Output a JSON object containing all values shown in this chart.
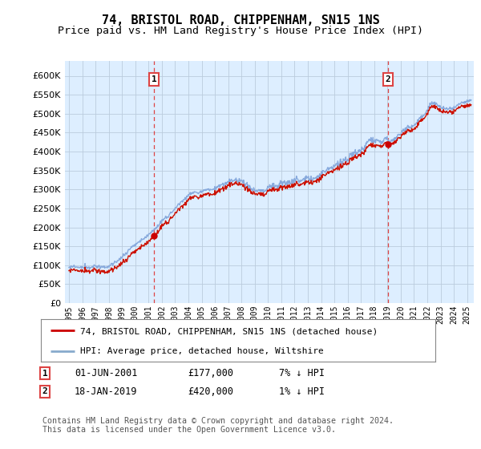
{
  "title": "74, BRISTOL ROAD, CHIPPENHAM, SN15 1NS",
  "subtitle": "Price paid vs. HM Land Registry's House Price Index (HPI)",
  "yticks": [
    0,
    50000,
    100000,
    150000,
    200000,
    250000,
    300000,
    350000,
    400000,
    450000,
    500000,
    550000,
    600000
  ],
  "xlim_start": 1994.7,
  "xlim_end": 2025.5,
  "ylim": [
    0,
    640000
  ],
  "marker1_x": 2001.42,
  "marker1_y": 177000,
  "marker2_x": 2019.05,
  "marker2_y": 420000,
  "vline1_x": 2001.42,
  "vline2_x": 2019.05,
  "legend_line1_color": "#cc0000",
  "legend_line2_color": "#88aacc",
  "legend_line1_label": "74, BRISTOL ROAD, CHIPPENHAM, SN15 1NS (detached house)",
  "legend_line2_label": "HPI: Average price, detached house, Wiltshire",
  "note1_date": "01-JUN-2001",
  "note1_price": "£177,000",
  "note1_hpi": "7% ↓ HPI",
  "note2_date": "18-JAN-2019",
  "note2_price": "£420,000",
  "note2_hpi": "1% ↓ HPI",
  "footer": "Contains HM Land Registry data © Crown copyright and database right 2024.\nThis data is licensed under the Open Government Licence v3.0.",
  "bg_color": "#ffffff",
  "plot_bg_color": "#ddeeff",
  "grid_color": "#bbccdd",
  "hpi_line_color": "#88aadd",
  "price_line_color": "#cc1100",
  "vline_color": "#dd4444",
  "marker_color": "#cc0000"
}
